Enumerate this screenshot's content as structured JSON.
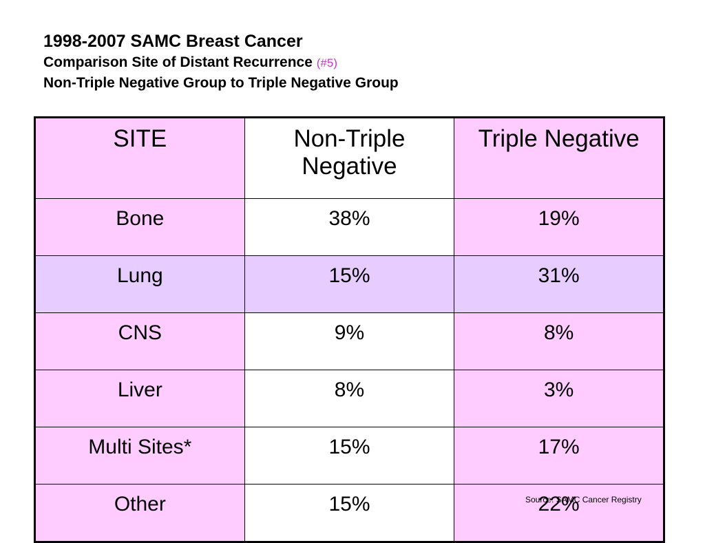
{
  "title": {
    "line1": "1998-2007 SAMC Breast Cancer",
    "line2": "Comparison Site of Distant Recurrence",
    "line2_ref": "(#5)",
    "line3": "Non-Triple Negative Group to Triple Negative Group"
  },
  "table": {
    "headers": [
      "SITE",
      "Non-Triple Negative",
      "Triple Negative"
    ],
    "rows": [
      {
        "site": "Bone",
        "non_triple": "38%",
        "triple": "19%"
      },
      {
        "site": "Lung",
        "non_triple": "15%",
        "triple": "31%"
      },
      {
        "site": "CNS",
        "non_triple": "9%",
        "triple": "8%"
      },
      {
        "site": "Liver",
        "non_triple": "8%",
        "triple": "3%"
      },
      {
        "site": "Multi Sites*",
        "non_triple": "15%",
        "triple": "17%"
      },
      {
        "site": "Other",
        "non_triple": "15%",
        "triple": "22%"
      }
    ]
  },
  "source": "Source: SAMC Cancer Registry",
  "colors": {
    "pink": "#ffccff",
    "lavender": "#e6ccff",
    "reference": "#cc33cc"
  }
}
